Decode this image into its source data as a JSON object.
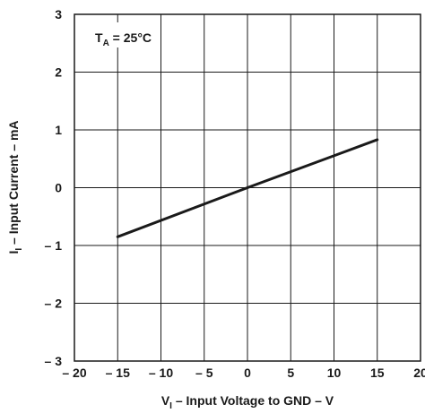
{
  "chart_data": {
    "type": "line",
    "title": "",
    "xlabel": {
      "main": "V",
      "sub": "I",
      "rest": " – Input Voltage to GND – V"
    },
    "ylabel": {
      "main": "I",
      "sub": "I",
      "rest": " – Input Current – mA"
    },
    "annotation": {
      "main": "T",
      "sub": "A",
      "rest": " = 25°C"
    },
    "xlim": [
      -20,
      20
    ],
    "ylim": [
      -3,
      3
    ],
    "xticks": [
      -20,
      -15,
      -10,
      -5,
      0,
      5,
      10,
      15,
      20
    ],
    "yticks": [
      -3,
      -2,
      -1,
      0,
      1,
      2,
      3
    ],
    "xtick_labels": [
      "– 20",
      "– 15",
      "– 10",
      "– 5",
      "0",
      "5",
      "10",
      "15",
      "20"
    ],
    "ytick_labels": [
      "– 3",
      "– 2",
      "– 1",
      "0",
      "1",
      "2",
      "3"
    ],
    "grid": true,
    "series": [
      {
        "x": [
          -15,
          0,
          15
        ],
        "y": [
          -0.85,
          0,
          0.83
        ]
      }
    ]
  }
}
